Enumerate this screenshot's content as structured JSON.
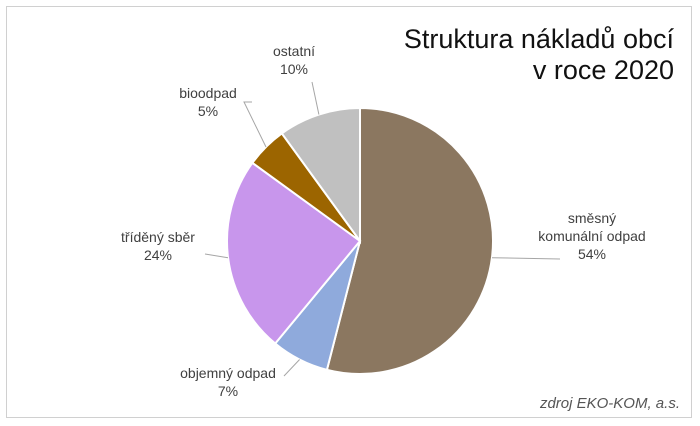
{
  "chart_data": {
    "type": "pie",
    "title": [
      "Struktura nákladů obcí",
      "v roce 2020"
    ],
    "source": "zdroj EKO-KOM, a.s.",
    "slices": [
      {
        "name": [
          "směsný",
          "komunální odpad"
        ],
        "value": 54,
        "label": "54%",
        "color": "#8B7760"
      },
      {
        "name": [
          "objemný odpad"
        ],
        "value": 7,
        "label": "7%",
        "color": "#8FAADC"
      },
      {
        "name": [
          "tříděný sběr"
        ],
        "value": 24,
        "label": "24%",
        "color": "#C896EC"
      },
      {
        "name": [
          "bioodpad"
        ],
        "value": 5,
        "label": "5%",
        "color": "#9C6500"
      },
      {
        "name": [
          "ostatní"
        ],
        "value": 10,
        "label": "10%",
        "color": "#C0C0C0"
      }
    ]
  }
}
